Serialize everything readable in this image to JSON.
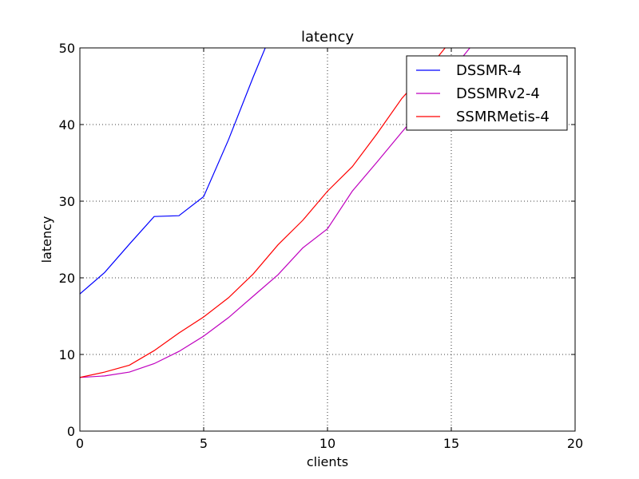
{
  "chart_data": {
    "type": "line",
    "title": "latency",
    "xlabel": "clients",
    "ylabel": "latency",
    "xlim": [
      0,
      20
    ],
    "ylim": [
      0,
      50
    ],
    "xticks": [
      "0",
      "5",
      "10",
      "15",
      "20"
    ],
    "yticks": [
      "0",
      "10",
      "20",
      "30",
      "40",
      "50"
    ],
    "grid": true,
    "legend_position": "top-right",
    "series": [
      {
        "name": "DSSMR-4",
        "color": "#0000ff",
        "x": [
          0,
          1,
          2,
          3,
          4,
          5,
          6,
          7,
          8
        ],
        "y": [
          17.9,
          20.7,
          24.4,
          28.0,
          28.1,
          30.6,
          38.0,
          46.2,
          54.0
        ]
      },
      {
        "name": "DSSMRv2-4",
        "color": "#bf00bf",
        "x": [
          0,
          1,
          2,
          3,
          4,
          5,
          6,
          7,
          8,
          9,
          10,
          11,
          12,
          13,
          14,
          15,
          16
        ],
        "y": [
          7.0,
          7.2,
          7.7,
          8.8,
          10.4,
          12.4,
          14.8,
          17.6,
          20.4,
          23.9,
          26.4,
          31.3,
          35.1,
          39.0,
          42.8,
          47.0,
          51.0
        ]
      },
      {
        "name": "SSMRMetis-4",
        "color": "#ff0000",
        "x": [
          0,
          1,
          2,
          3,
          4,
          5,
          6,
          7,
          8,
          9,
          10,
          11,
          12,
          13,
          14,
          15
        ],
        "y": [
          7.0,
          7.7,
          8.6,
          10.5,
          12.8,
          14.9,
          17.4,
          20.5,
          24.3,
          27.5,
          31.3,
          34.5,
          38.8,
          43.4,
          47.0,
          51.0
        ]
      }
    ]
  }
}
